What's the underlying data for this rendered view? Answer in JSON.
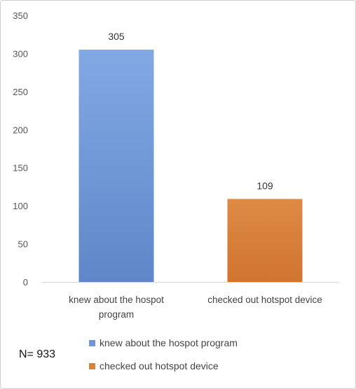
{
  "chart_data": {
    "type": "bar",
    "title": "",
    "xlabel": "",
    "ylabel": "",
    "ylim": [
      0,
      350
    ],
    "yticks": [
      0,
      50,
      100,
      150,
      200,
      250,
      300,
      350
    ],
    "grid": false,
    "legend_position": "bottom",
    "categories": [
      "knew about the hospot program",
      "checked out hotspot device"
    ],
    "category_label_lines": [
      [
        "knew about the hospot",
        "program"
      ],
      [
        "checked out hotspot device"
      ]
    ],
    "values": [
      305,
      109
    ],
    "data_labels": [
      "305",
      "109"
    ],
    "colors": [
      "#6f97d6",
      "#d9823b"
    ],
    "legend": [
      {
        "label": "knew about the hospot program",
        "color": "#6f97d6"
      },
      {
        "label": "checked out hotspot device",
        "color": "#d9823b"
      }
    ]
  },
  "annotation": "N= 933"
}
